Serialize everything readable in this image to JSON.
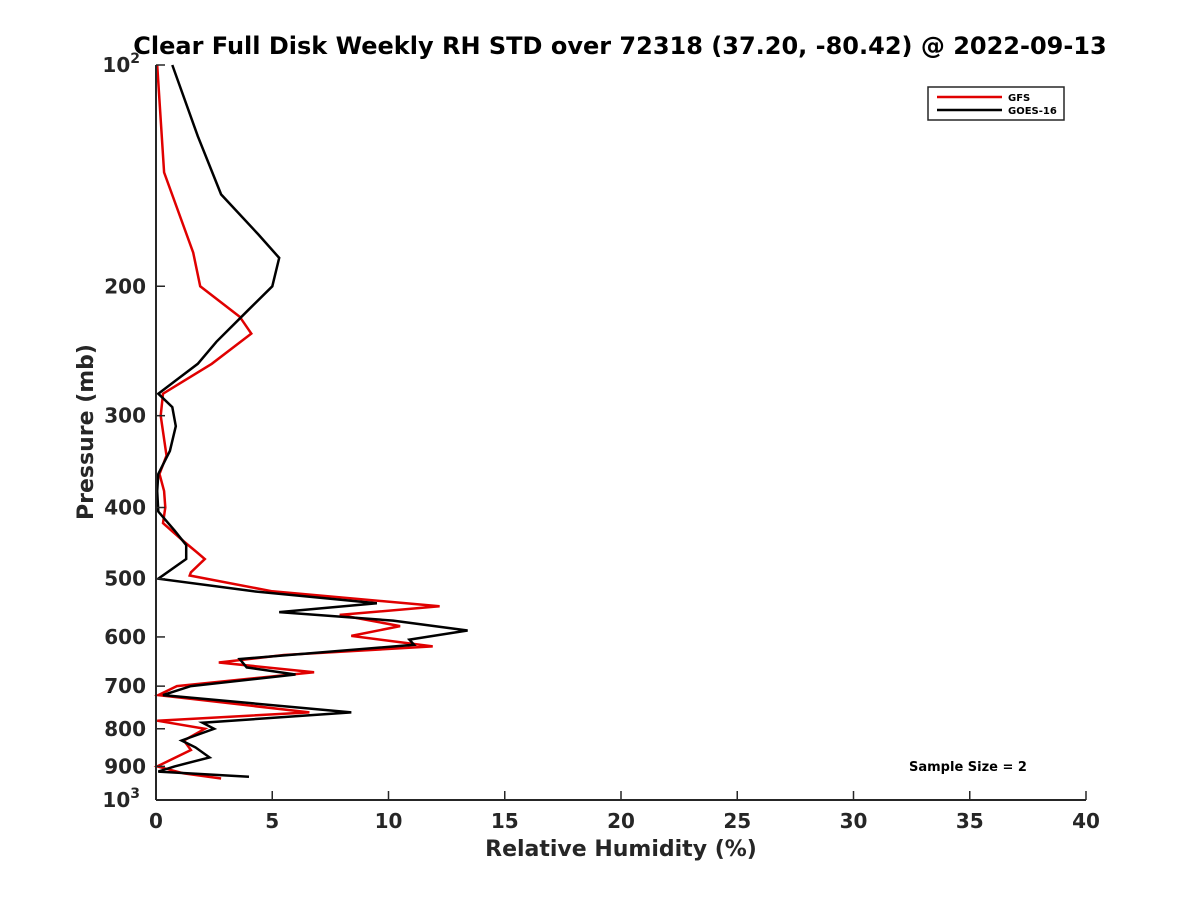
{
  "chart_data": {
    "type": "line",
    "title": "Clear Full Disk Weekly RH STD over 72318 (37.20, -80.42) @ 2022-09-13",
    "xlabel": "Relative Humidity (%)",
    "ylabel": "Pressure (mb)",
    "xlim": [
      0,
      40
    ],
    "ylim": [
      100,
      1000
    ],
    "yscale": "log",
    "yreversed": true,
    "grid": false,
    "legend_position": "top-right",
    "x_ticks": [
      "0",
      "5",
      "10",
      "15",
      "20",
      "25",
      "30",
      "35",
      "40"
    ],
    "y_ticks": [
      {
        "value": 100,
        "label": "10",
        "sup": "2"
      },
      {
        "value": 200,
        "label": "200",
        "sup": ""
      },
      {
        "value": 300,
        "label": "300",
        "sup": ""
      },
      {
        "value": 400,
        "label": "400",
        "sup": ""
      },
      {
        "value": 500,
        "label": "500",
        "sup": ""
      },
      {
        "value": 600,
        "label": "600",
        "sup": ""
      },
      {
        "value": 700,
        "label": "700",
        "sup": ""
      },
      {
        "value": 800,
        "label": "800",
        "sup": ""
      },
      {
        "value": 900,
        "label": "900",
        "sup": ""
      },
      {
        "value": 1000,
        "label": "10",
        "sup": "3"
      }
    ],
    "annotation": "Sample Size = 2",
    "series": [
      {
        "name": "GFS",
        "color": "#e00000",
        "points": [
          [
            0.05,
            100
          ],
          [
            0.35,
            140
          ],
          [
            1.6,
            180
          ],
          [
            1.9,
            200
          ],
          [
            3.6,
            220
          ],
          [
            4.1,
            232
          ],
          [
            2.4,
            255
          ],
          [
            0.3,
            280
          ],
          [
            0.2,
            300
          ],
          [
            0.45,
            340
          ],
          [
            0.15,
            360
          ],
          [
            0.35,
            380
          ],
          [
            0.4,
            400
          ],
          [
            0.3,
            420
          ],
          [
            1.2,
            445
          ],
          [
            1.75,
            460
          ],
          [
            2.1,
            470
          ],
          [
            1.5,
            490
          ],
          [
            1.45,
            495
          ],
          [
            5.0,
            520
          ],
          [
            12.2,
            545
          ],
          [
            7.9,
            560
          ],
          [
            10.5,
            580
          ],
          [
            8.4,
            598
          ],
          [
            11.9,
            618
          ],
          [
            5.5,
            635
          ],
          [
            2.7,
            650
          ],
          [
            6.8,
            670
          ],
          [
            0.9,
            700
          ],
          [
            0.1,
            720
          ],
          [
            6.6,
            760
          ],
          [
            0.05,
            780
          ],
          [
            2.1,
            800
          ],
          [
            1.2,
            830
          ],
          [
            1.5,
            855
          ],
          [
            0.05,
            900
          ],
          [
            1.2,
            920
          ],
          [
            2.8,
            935
          ]
        ]
      },
      {
        "name": "GOES-16",
        "color": "#000000",
        "points": [
          [
            0.7,
            100
          ],
          [
            1.8,
            125
          ],
          [
            2.8,
            150
          ],
          [
            4.4,
            170
          ],
          [
            5.3,
            183
          ],
          [
            5.0,
            200
          ],
          [
            4.0,
            215
          ],
          [
            2.6,
            238
          ],
          [
            1.8,
            255
          ],
          [
            0.1,
            280
          ],
          [
            0.7,
            292
          ],
          [
            0.85,
            310
          ],
          [
            0.6,
            335
          ],
          [
            0.1,
            360
          ],
          [
            0.05,
            380
          ],
          [
            0.1,
            405
          ],
          [
            0.8,
            430
          ],
          [
            1.3,
            450
          ],
          [
            1.3,
            470
          ],
          [
            0.1,
            500
          ],
          [
            4.2,
            520
          ],
          [
            9.5,
            540
          ],
          [
            5.3,
            555
          ],
          [
            10.2,
            570
          ],
          [
            13.4,
            588
          ],
          [
            10.9,
            605
          ],
          [
            11.1,
            615
          ],
          [
            3.6,
            643
          ],
          [
            3.9,
            660
          ],
          [
            6.0,
            675
          ],
          [
            1.5,
            700
          ],
          [
            0.3,
            720
          ],
          [
            8.4,
            760
          ],
          [
            2.0,
            785
          ],
          [
            2.5,
            800
          ],
          [
            1.1,
            830
          ],
          [
            1.7,
            848
          ],
          [
            2.3,
            875
          ],
          [
            0.8,
            900
          ],
          [
            0.1,
            915
          ],
          [
            4.0,
            930
          ]
        ]
      }
    ]
  }
}
